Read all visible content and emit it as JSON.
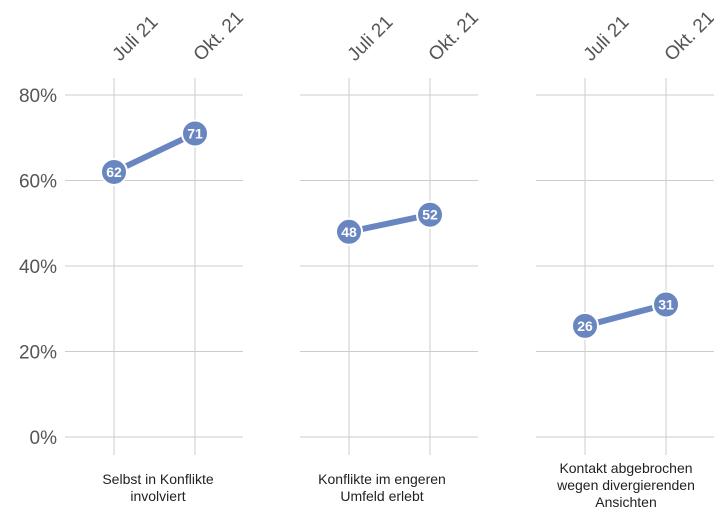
{
  "chart_data": {
    "type": "line",
    "x": [
      "Juli 21",
      "Okt. 21"
    ],
    "ylim": [
      0,
      80
    ],
    "yticks": [
      "0%",
      "20%",
      "40%",
      "60%",
      "80%"
    ],
    "grid": true,
    "colors": {
      "series": "#6a86c0",
      "grid": "#cccccc"
    },
    "panels": [
      {
        "label": "Selbst in Konflikte involviert",
        "values": [
          62,
          71
        ],
        "value_labels": [
          "62",
          "71"
        ]
      },
      {
        "label": "Konflikte im engeren Umfeld erlebt",
        "values": [
          48,
          52
        ],
        "value_labels": [
          "48",
          "52"
        ]
      },
      {
        "label": "Kontakt abgebrochen wegen divergierenden Ansichten",
        "values": [
          26,
          31
        ],
        "value_labels": [
          "26",
          "31"
        ]
      }
    ]
  }
}
